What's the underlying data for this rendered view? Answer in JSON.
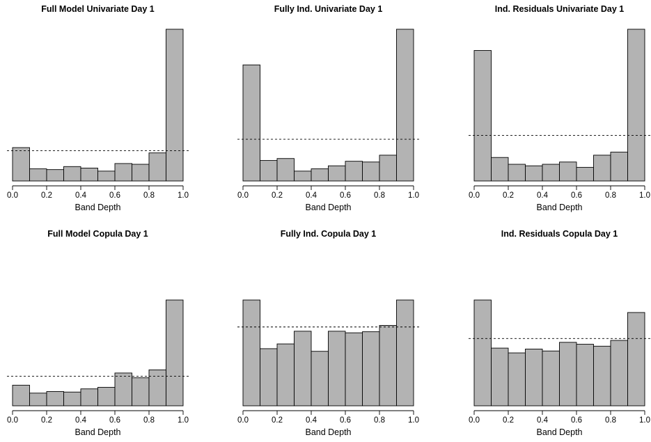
{
  "chart_data": [
    {
      "type": "bar",
      "title": "Full Model Univariate Day 1",
      "xlabel": "Band Depth",
      "xlim": [
        0,
        1
      ],
      "xticks": [
        "0.0",
        "0.2",
        "0.4",
        "0.6",
        "0.8",
        "1.0"
      ],
      "bin_edges": [
        0,
        0.1,
        0.2,
        0.3,
        0.4,
        0.5,
        0.6,
        0.7,
        0.8,
        0.9,
        1.0
      ],
      "values": [
        0.22,
        0.08,
        0.075,
        0.095,
        0.085,
        0.065,
        0.115,
        0.11,
        0.185,
        1.0
      ],
      "reference_line": 0.2,
      "grid": false
    },
    {
      "type": "bar",
      "title": "Fully Ind. Univariate Day 1",
      "xlabel": "Band Depth",
      "xlim": [
        0,
        1
      ],
      "xticks": [
        "0.0",
        "0.2",
        "0.4",
        "0.6",
        "0.8",
        "1.0"
      ],
      "bin_edges": [
        0,
        0.1,
        0.2,
        0.3,
        0.4,
        0.5,
        0.6,
        0.7,
        0.8,
        0.9,
        1.0
      ],
      "values": [
        0.765,
        0.135,
        0.148,
        0.065,
        0.08,
        0.1,
        0.13,
        0.125,
        0.17,
        1.0
      ],
      "reference_line": 0.275,
      "grid": false
    },
    {
      "type": "bar",
      "title": "Ind. Residuals Univariate Day 1",
      "xlabel": "Band Depth",
      "xlim": [
        0,
        1
      ],
      "xticks": [
        "0.0",
        "0.2",
        "0.4",
        "0.6",
        "0.8",
        "1.0"
      ],
      "bin_edges": [
        0,
        0.1,
        0.2,
        0.3,
        0.4,
        0.5,
        0.6,
        0.7,
        0.8,
        0.9,
        1.0
      ],
      "values": [
        0.86,
        0.155,
        0.11,
        0.1,
        0.11,
        0.125,
        0.09,
        0.17,
        0.19,
        1.0
      ],
      "reference_line": 0.3,
      "grid": false
    },
    {
      "type": "bar",
      "title": "Full Model Copula Day 1",
      "xlabel": "Band Depth",
      "xlim": [
        0,
        1
      ],
      "xticks": [
        "0.0",
        "0.2",
        "0.4",
        "0.6",
        "0.8",
        "1.0"
      ],
      "bin_edges": [
        0,
        0.1,
        0.2,
        0.3,
        0.4,
        0.5,
        0.6,
        0.7,
        0.8,
        0.9,
        1.0
      ],
      "values": [
        0.195,
        0.12,
        0.135,
        0.13,
        0.16,
        0.175,
        0.31,
        0.265,
        0.34,
        1.0
      ],
      "reference_line": 0.28,
      "grid": false
    },
    {
      "type": "bar",
      "title": "Fully Ind. Copula Day 1",
      "xlabel": "Band Depth",
      "xlim": [
        0,
        1
      ],
      "xticks": [
        "0.0",
        "0.2",
        "0.4",
        "0.6",
        "0.8",
        "1.0"
      ],
      "bin_edges": [
        0,
        0.1,
        0.2,
        0.3,
        0.4,
        0.5,
        0.6,
        0.7,
        0.8,
        0.9,
        1.0
      ],
      "values": [
        1.0,
        0.54,
        0.585,
        0.705,
        0.515,
        0.705,
        0.69,
        0.7,
        0.76,
        1.0
      ],
      "reference_line": 0.745,
      "grid": false
    },
    {
      "type": "bar",
      "title": "Ind. Residuals Copula Day 1",
      "xlabel": "Band Depth",
      "xlim": [
        0,
        1
      ],
      "xticks": [
        "0.0",
        "0.2",
        "0.4",
        "0.6",
        "0.8",
        "1.0"
      ],
      "bin_edges": [
        0,
        0.1,
        0.2,
        0.3,
        0.4,
        0.5,
        0.6,
        0.7,
        0.8,
        0.9,
        1.0
      ],
      "values": [
        1.1,
        0.6,
        0.55,
        0.59,
        0.57,
        0.66,
        0.64,
        0.62,
        0.68,
        0.97
      ],
      "reference_line": 0.7,
      "grid": false
    }
  ]
}
